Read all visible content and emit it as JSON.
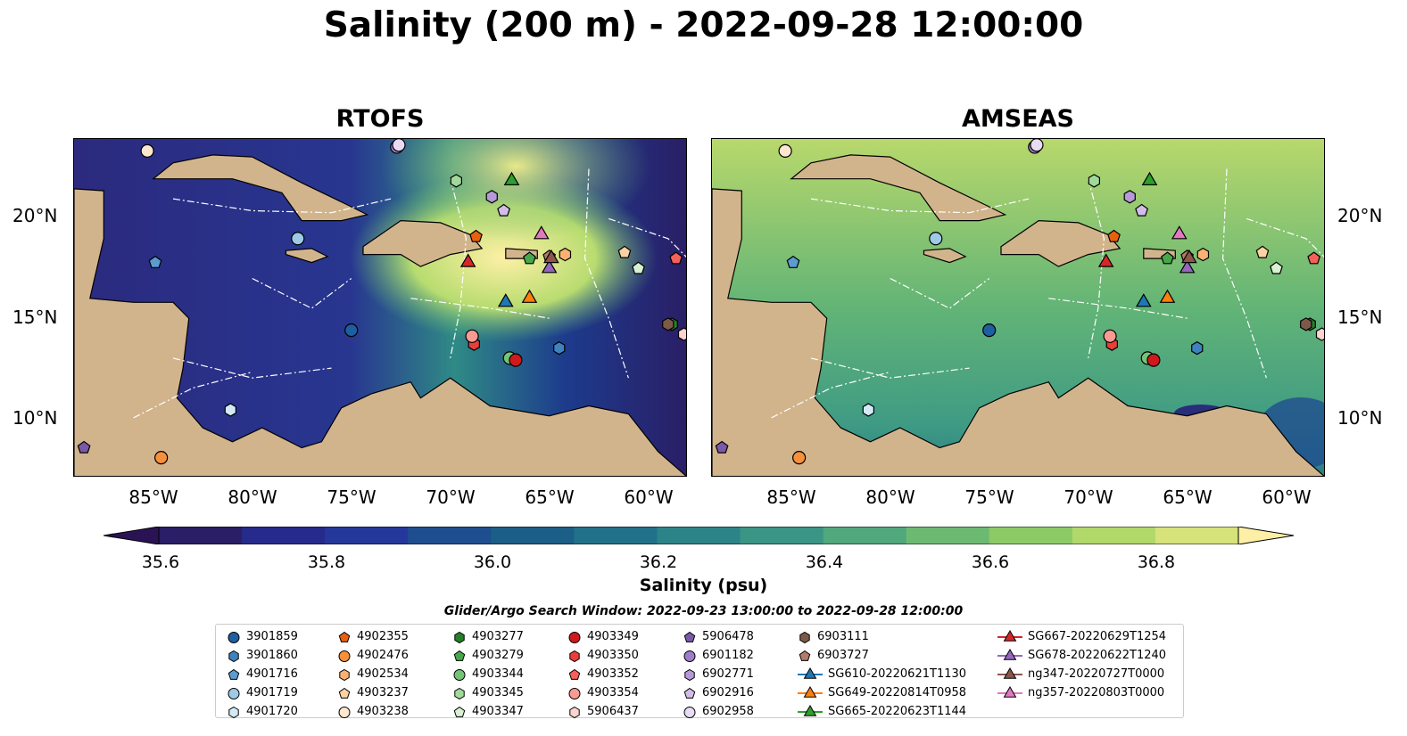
{
  "title": "Salinity (200 m) - 2022-09-28 12:00:00",
  "panels": [
    "RTOFS",
    "AMSEAS"
  ],
  "lat_ticks": [
    "20°N",
    "15°N",
    "10°N"
  ],
  "lon_ticks": [
    "85°W",
    "80°W",
    "75°W",
    "70°W",
    "65°W",
    "60°W"
  ],
  "colorbar": {
    "label": "Salinity (psu)",
    "ticks": [
      "35.6",
      "35.8",
      "36.0",
      "36.2",
      "36.4",
      "36.6",
      "36.8"
    ],
    "colors": [
      "#2a1e66",
      "#262a8a",
      "#24389c",
      "#1f4e8f",
      "#1b5f87",
      "#21718a",
      "#2c8488",
      "#3a9585",
      "#50a87c",
      "#6cba72",
      "#8cca66",
      "#b0d86a",
      "#d6e27a"
    ],
    "under_color": "#2a1355",
    "over_color": "#fdf0a6"
  },
  "legend_title": "Glider/Argo Search Window: 2022-09-23 13:00:00 to 2022-09-28 12:00:00",
  "legend_items": [
    {
      "label": "3901859",
      "marker": "circle",
      "color": "#1f5fa0"
    },
    {
      "label": "3901860",
      "marker": "hexagon",
      "color": "#3f82c0"
    },
    {
      "label": "4901716",
      "marker": "pentagon",
      "color": "#5b9bd0"
    },
    {
      "label": "4901719",
      "marker": "circle",
      "color": "#9ecae6"
    },
    {
      "label": "4901720",
      "marker": "hexagon",
      "color": "#d3eaf6"
    },
    {
      "label": "4902355",
      "marker": "pentagon",
      "color": "#e6600e"
    },
    {
      "label": "4902476",
      "marker": "circle",
      "color": "#f6903b"
    },
    {
      "label": "4902534",
      "marker": "hexagon",
      "color": "#fbb171"
    },
    {
      "label": "4903237",
      "marker": "pentagon",
      "color": "#fcd2a3"
    },
    {
      "label": "4903238",
      "marker": "circle",
      "color": "#fde7cf"
    },
    {
      "label": "4903277",
      "marker": "hexagon",
      "color": "#267f2a"
    },
    {
      "label": "4903279",
      "marker": "pentagon",
      "color": "#47a84b"
    },
    {
      "label": "4903344",
      "marker": "circle",
      "color": "#74c476"
    },
    {
      "label": "4903345",
      "marker": "hexagon",
      "color": "#a1d99b"
    },
    {
      "label": "4903347",
      "marker": "pentagon",
      "color": "#d9f0d3"
    },
    {
      "label": "4903349",
      "marker": "circle",
      "color": "#d0191d"
    },
    {
      "label": "4903350",
      "marker": "hexagon",
      "color": "#ea3e3a"
    },
    {
      "label": "4903352",
      "marker": "pentagon",
      "color": "#f4615a"
    },
    {
      "label": "4903354",
      "marker": "circle",
      "color": "#f99b92"
    },
    {
      "label": "5906437",
      "marker": "hexagon",
      "color": "#fdd4ce"
    },
    {
      "label": "5906478",
      "marker": "pentagon",
      "color": "#7a5aa8"
    },
    {
      "label": "6901182",
      "marker": "circle",
      "color": "#9e7ec9"
    },
    {
      "label": "6902771",
      "marker": "hexagon",
      "color": "#b69ad8"
    },
    {
      "label": "6902916",
      "marker": "pentagon",
      "color": "#d2bde8"
    },
    {
      "label": "6902958",
      "marker": "circle",
      "color": "#e8dbf4"
    },
    {
      "label": "6903111",
      "marker": "hexagon",
      "color": "#7b5a4a"
    },
    {
      "label": "6903727",
      "marker": "pentagon",
      "color": "#b47a6a"
    },
    {
      "label": "SG610-20220621T1130",
      "marker": "triangle-line",
      "color": "#1f77b4"
    },
    {
      "label": "SG649-20220814T0958",
      "marker": "triangle-line",
      "color": "#ff7f0e"
    },
    {
      "label": "SG665-20220623T1144",
      "marker": "triangle-line",
      "color": "#2ca02c"
    },
    {
      "label": "SG667-20220629T1254",
      "marker": "triangle-line",
      "color": "#d62728"
    },
    {
      "label": "SG678-20220622T1240",
      "marker": "triangle-line",
      "color": "#9467bd"
    },
    {
      "label": "ng347-20220727T0000",
      "marker": "triangle-line",
      "color": "#8c564b"
    },
    {
      "label": "ng357-20220803T0000",
      "marker": "triangle-line",
      "color": "#e377c2"
    }
  ],
  "chart_data": {
    "type": "heatmap",
    "title": "Salinity (200 m) - 2022-09-28 12:00:00",
    "xlim": [
      -89,
      -58
    ],
    "ylim": [
      7,
      24
    ],
    "colorbar_range": [
      35.5,
      36.9
    ],
    "colorbar_label": "Salinity (psu)",
    "panels": [
      {
        "name": "RTOFS",
        "field_summary": "fresher (~35.6–35.8) in western Caribbean; saline (>36.8) NE Caribbean near Hispaniola/Puerto Rico"
      },
      {
        "name": "AMSEAS",
        "field_summary": "broadly 36.3–36.7 throughout; fresher (<35.7) small pocket off Venezuela"
      }
    ],
    "observations": [
      {
        "label": "3901859",
        "lon": -75.0,
        "lat": 14.4
      },
      {
        "label": "3901860",
        "lon": -64.5,
        "lat": 13.5
      },
      {
        "label": "4901716",
        "lon": -84.9,
        "lat": 17.8
      },
      {
        "label": "4901719",
        "lon": -77.7,
        "lat": 19.0
      },
      {
        "label": "4901720",
        "lon": -81.1,
        "lat": 10.4
      },
      {
        "label": "4902355",
        "lon": -68.7,
        "lat": 19.1
      },
      {
        "label": "4902476",
        "lon": -84.6,
        "lat": 8.0
      },
      {
        "label": "4902534",
        "lon": -64.2,
        "lat": 18.2
      },
      {
        "label": "4903237",
        "lon": -61.2,
        "lat": 18.3
      },
      {
        "label": "4903238",
        "lon": -85.3,
        "lat": 23.4
      },
      {
        "label": "4903277",
        "lon": -58.8,
        "lat": 14.7
      },
      {
        "label": "4903279",
        "lon": -66.0,
        "lat": 18.0
      },
      {
        "label": "4903344",
        "lon": -67.0,
        "lat": 13.0
      },
      {
        "label": "4903345",
        "lon": -69.7,
        "lat": 21.9
      },
      {
        "label": "4903347",
        "lon": -60.5,
        "lat": 17.5
      },
      {
        "label": "4903349",
        "lon": -66.7,
        "lat": 12.9
      },
      {
        "label": "4903350",
        "lon": -68.8,
        "lat": 13.7
      },
      {
        "label": "4903352",
        "lon": -58.6,
        "lat": 18.0
      },
      {
        "label": "4903354",
        "lon": -68.9,
        "lat": 14.1
      },
      {
        "label": "5906437",
        "lon": -58.2,
        "lat": 14.2
      },
      {
        "label": "5906478",
        "lon": -88.5,
        "lat": 8.5
      },
      {
        "label": "6901182",
        "lon": -72.7,
        "lat": 23.6
      },
      {
        "label": "6902771",
        "lon": -67.9,
        "lat": 21.1
      },
      {
        "label": "6902916",
        "lon": -67.3,
        "lat": 20.4
      },
      {
        "label": "6902958",
        "lon": -72.6,
        "lat": 23.7
      },
      {
        "label": "6903111",
        "lon": -59.0,
        "lat": 14.7
      },
      {
        "label": "6903727",
        "lon": -65.0,
        "lat": 18.1
      },
      {
        "label": "SG610-20220621T1130",
        "lon": -67.2,
        "lat": 15.8
      },
      {
        "label": "SG649-20220814T0958",
        "lon": -66.0,
        "lat": 16.0
      },
      {
        "label": "SG665-20220623T1144",
        "lon": -66.9,
        "lat": 21.9
      },
      {
        "label": "SG667-20220629T1254",
        "lon": -69.1,
        "lat": 17.8
      },
      {
        "label": "SG678-20220622T1240",
        "lon": -65.0,
        "lat": 17.5
      },
      {
        "label": "ng347-20220727T0000",
        "lon": -64.9,
        "lat": 18.0
      },
      {
        "label": "ng357-20220803T0000",
        "lon": -65.4,
        "lat": 19.2
      }
    ]
  }
}
